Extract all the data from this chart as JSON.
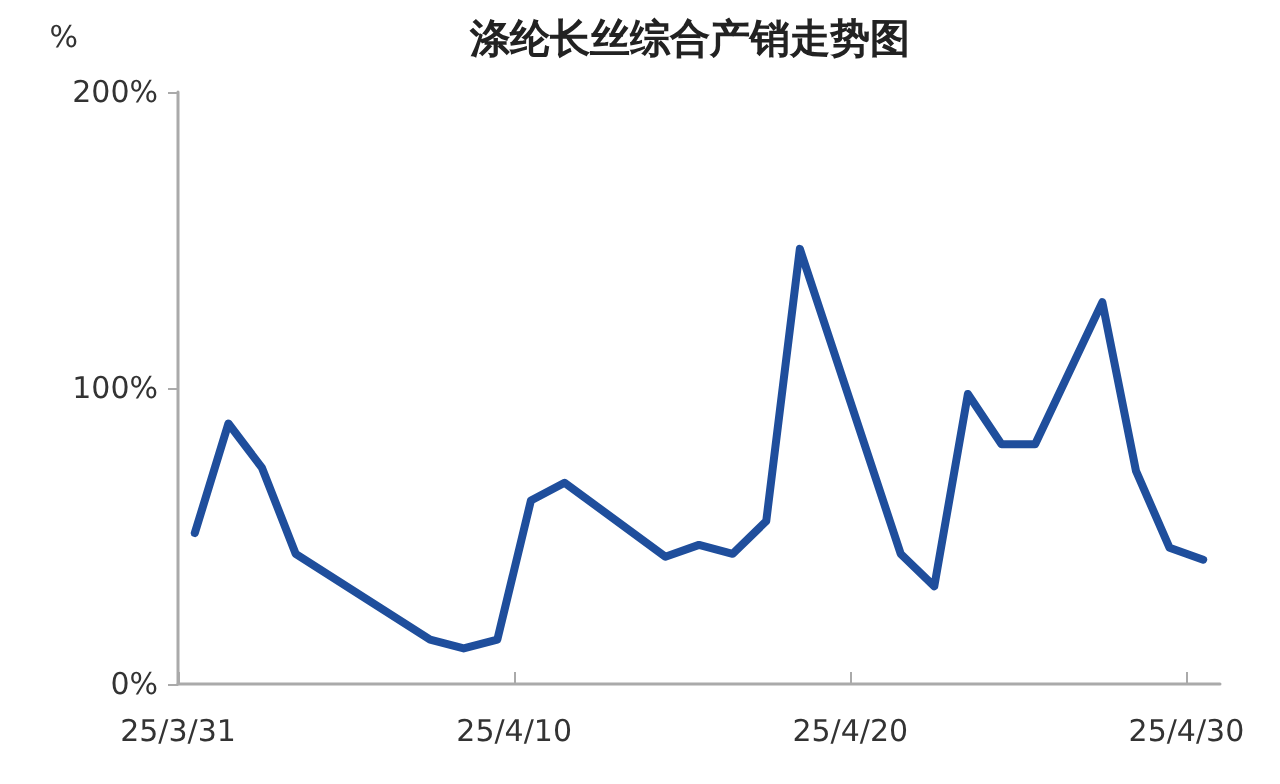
{
  "chart_data": {
    "type": "line",
    "title": "涤纶长丝综合产销走势图",
    "ylabel": "%",
    "x": [
      "--03-31T12:00",
      "--04-01T12:00",
      "--04-02T12:00",
      "--04-03T12:00",
      "--04-07T12:00",
      "--04-08T12:00",
      "--04-09T12:00",
      "--04-10T12:00",
      "--04-11T12:00",
      "--04-14T12:00",
      "--04-15T12:00",
      "--04-16T12:00",
      "--04-17T12:00",
      "--04-18T12:00",
      "--04-21T12:00",
      "--04-22T12:00",
      "--04-23T12:00",
      "--04-24T12:00",
      "--04-25T12:00",
      "--04-27T12:00",
      "--04-28T12:00",
      "--04-29T12:00",
      "--04-30T12:00"
    ],
    "series": [
      {
        "color": "#1f4e9c",
        "values": [
          51,
          88,
          73,
          44,
          15,
          12,
          15,
          62,
          68,
          43,
          47,
          44,
          55,
          147,
          44,
          33,
          98,
          81,
          81,
          129,
          72,
          46,
          42
        ]
      }
    ],
    "xlim": [
      "--03-31",
      "--05-01"
    ],
    "xticks": [
      {
        "value": "--03-31",
        "label": "25/3/31"
      },
      {
        "value": "--04-10",
        "label": "25/4/10"
      },
      {
        "value": "--04-20",
        "label": "25/4/20"
      },
      {
        "value": "--04-30",
        "label": "25/4/30"
      }
    ],
    "ylim": [
      0,
      200
    ],
    "yticks": [
      {
        "value": 0,
        "label": "0%"
      },
      {
        "value": 100,
        "label": "100%"
      },
      {
        "value": 200,
        "label": "200%"
      }
    ],
    "grid": false,
    "marker": "none",
    "line_style": "solid"
  }
}
